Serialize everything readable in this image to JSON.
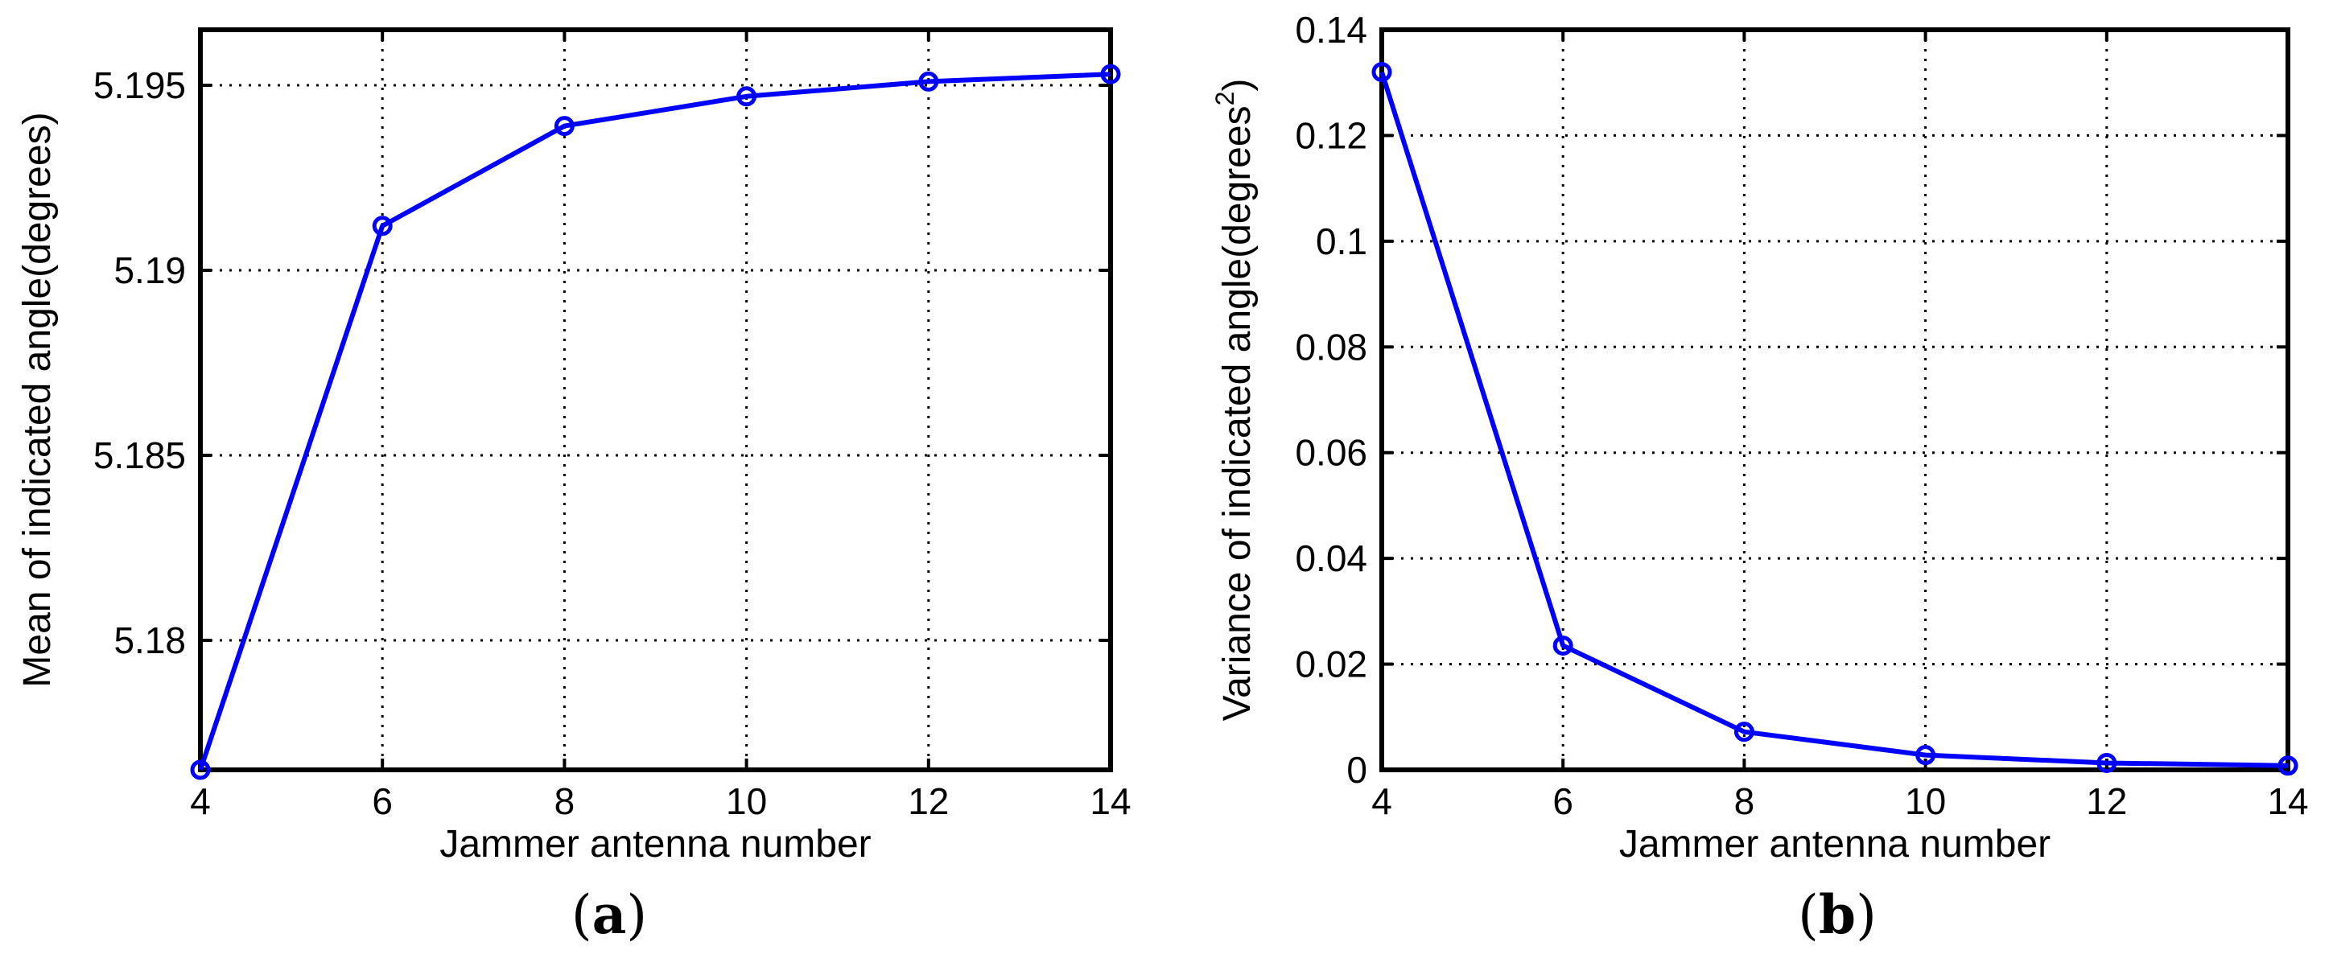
{
  "colors": {
    "series": "#0000ff",
    "axes": "#000000",
    "background": "#ffffff"
  },
  "chart_data": [
    {
      "type": "line",
      "panel_label": "a",
      "xlabel": "Jammer antenna number",
      "ylabel": "Mean of indicated angle(degrees)",
      "xlim": [
        4,
        14
      ],
      "ylim": [
        5.1765,
        5.1965
      ],
      "xticks": [
        4,
        6,
        8,
        10,
        12,
        14
      ],
      "yticks": [
        5.18,
        5.185,
        5.19,
        5.195
      ],
      "ytick_labels": [
        "5.18",
        "5.185",
        "5.19",
        "5.195"
      ],
      "grid": true,
      "marker": "circle",
      "x": [
        4,
        6,
        8,
        10,
        12,
        14
      ],
      "y": [
        5.1765,
        5.1912,
        5.1939,
        5.1947,
        5.1951,
        5.1953
      ]
    },
    {
      "type": "line",
      "panel_label": "b",
      "xlabel": "Jammer antenna number",
      "ylabel": "Variance of indicated angle(degrees",
      "ylabel_superscript": "2",
      "ylabel_suffix": ")",
      "xlim": [
        4,
        14
      ],
      "ylim": [
        0,
        0.14
      ],
      "xticks": [
        4,
        6,
        8,
        10,
        12,
        14
      ],
      "yticks": [
        0,
        0.02,
        0.04,
        0.06,
        0.08,
        0.1,
        0.12,
        0.14
      ],
      "ytick_labels": [
        "0",
        "0.02",
        "0.04",
        "0.06",
        "0.08",
        "0.1",
        "0.12",
        "0.14"
      ],
      "grid": true,
      "marker": "circle",
      "x": [
        4,
        6,
        8,
        10,
        12,
        14
      ],
      "y": [
        0.132,
        0.0235,
        0.0072,
        0.0028,
        0.0013,
        0.0008
      ]
    }
  ]
}
